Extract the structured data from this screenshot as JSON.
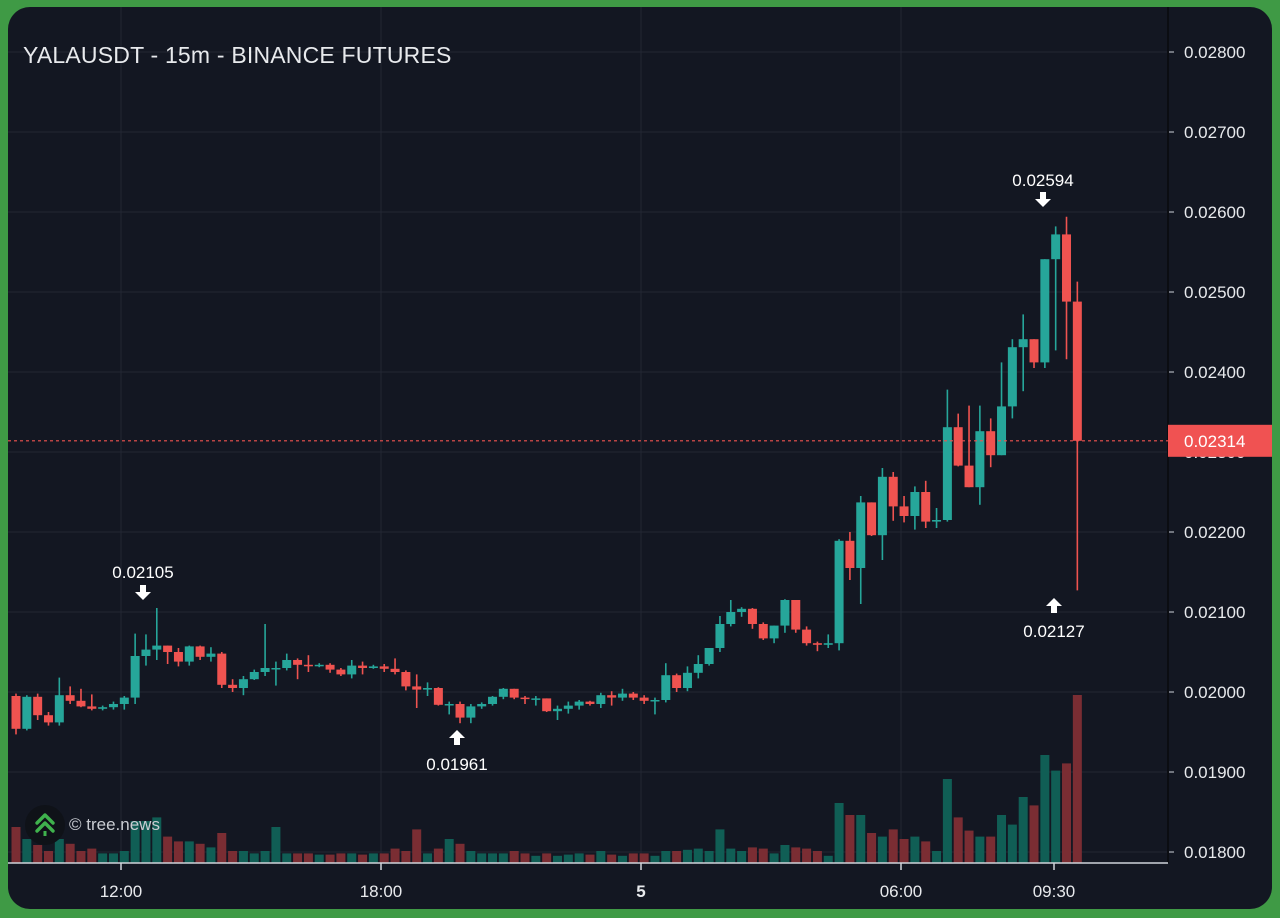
{
  "header": {
    "title": "YALAUSDT - 15m - BINANCE FUTURES"
  },
  "watermark": {
    "text": "© tree.news",
    "icon": "tree-logo-icon"
  },
  "colors": {
    "frame_border": "#3f9a45",
    "background": "#131722",
    "grid": "#232733",
    "up": "#26a69a",
    "down": "#ef5350",
    "up_volume": "#105e55",
    "down_volume": "#7a2d33",
    "last_price_label": "#f05252",
    "text": "#e8eaed"
  },
  "price_axis": {
    "ticks": [
      "0.02800",
      "0.02700",
      "0.02600",
      "0.02500",
      "0.02400",
      "0.02300",
      "0.02200",
      "0.02100",
      "0.02000",
      "0.01900",
      "0.01800"
    ],
    "last_price_label": "0.02314"
  },
  "time_axis": {
    "ticks": [
      {
        "label": "12:00",
        "bold": false
      },
      {
        "label": "18:00",
        "bold": false
      },
      {
        "label": "5",
        "bold": true
      },
      {
        "label": "06:00",
        "bold": false
      },
      {
        "label": "09:30",
        "bold": false
      }
    ]
  },
  "annotations": {
    "high_left": {
      "label": "0.02105",
      "direction": "down"
    },
    "low_mid": {
      "label": "0.01961",
      "direction": "up"
    },
    "high_peak": {
      "label": "0.02594",
      "direction": "down"
    },
    "low_last": {
      "label": "0.02127",
      "direction": "up"
    }
  },
  "chart_data": {
    "type": "candlestick",
    "title": "YALAUSDT - 15m - BINANCE FUTURES",
    "xlabel": "",
    "ylabel": "",
    "ylim": [
      0.0178,
      0.0281
    ],
    "grid": true,
    "legend": "none",
    "x_ticks": [
      "12:00",
      "18:00",
      "5",
      "06:00",
      "09:30"
    ],
    "y_ticks": [
      0.028,
      0.027,
      0.026,
      0.025,
      0.024,
      0.023,
      0.022,
      0.021,
      0.02,
      0.019,
      0.018
    ],
    "last_price": 0.02314,
    "annotated_high_left": 0.02105,
    "annotated_low": 0.01961,
    "annotated_high": 0.02594,
    "annotated_low_last": 0.02127,
    "candles_ohlcv": [
      [
        0.01995,
        0.01998,
        0.01947,
        0.01954,
        3
      ],
      [
        0.01954,
        0.01996,
        0.01952,
        0.01994,
        2
      ],
      [
        0.01994,
        0.01998,
        0.01965,
        0.01971,
        1.5
      ],
      [
        0.01971,
        0.01975,
        0.01958,
        0.01962,
        1
      ],
      [
        0.01962,
        0.02018,
        0.01958,
        0.01996,
        2
      ],
      [
        0.01996,
        0.02007,
        0.01985,
        0.01989,
        1.6
      ],
      [
        0.01989,
        0.02004,
        0.01981,
        0.01982,
        1
      ],
      [
        0.01982,
        0.01997,
        0.01977,
        0.01979,
        1.2
      ],
      [
        0.01979,
        0.01983,
        0.01977,
        0.01981,
        0.8
      ],
      [
        0.01981,
        0.01988,
        0.01978,
        0.01985,
        0.8
      ],
      [
        0.01985,
        0.01995,
        0.01978,
        0.01993,
        1
      ],
      [
        0.01993,
        0.02073,
        0.01985,
        0.02045,
        3.5
      ],
      [
        0.02045,
        0.02072,
        0.02033,
        0.02053,
        3.5
      ],
      [
        0.02053,
        0.02105,
        0.0204,
        0.02058,
        3.8
      ],
      [
        0.02058,
        0.02058,
        0.02035,
        0.0205,
        2.2
      ],
      [
        0.0205,
        0.02055,
        0.02032,
        0.02038,
        1.8
      ],
      [
        0.02038,
        0.02058,
        0.02033,
        0.02057,
        1.8
      ],
      [
        0.02057,
        0.02058,
        0.0204,
        0.02044,
        1.6
      ],
      [
        0.02044,
        0.02056,
        0.02038,
        0.02048,
        1.3
      ],
      [
        0.02048,
        0.0205,
        0.02005,
        0.02009,
        2.5
      ],
      [
        0.02009,
        0.02016,
        0.02,
        0.02005,
        1
      ],
      [
        0.02005,
        0.0202,
        0.01996,
        0.02016,
        1
      ],
      [
        0.02016,
        0.02028,
        0.02015,
        0.02025,
        0.8
      ],
      [
        0.02025,
        0.02085,
        0.0202,
        0.0203,
        1
      ],
      [
        0.0203,
        0.02038,
        0.02008,
        0.0203,
        3
      ],
      [
        0.0203,
        0.02048,
        0.02027,
        0.0204,
        0.8
      ],
      [
        0.0204,
        0.02042,
        0.02016,
        0.02034,
        0.8
      ],
      [
        0.02034,
        0.02046,
        0.02025,
        0.02033,
        0.8
      ],
      [
        0.02033,
        0.02036,
        0.02031,
        0.02034,
        0.7
      ],
      [
        0.02034,
        0.02036,
        0.02024,
        0.02028,
        0.7
      ],
      [
        0.02028,
        0.0203,
        0.0202,
        0.02022,
        0.8
      ],
      [
        0.02022,
        0.0204,
        0.02017,
        0.02033,
        0.8
      ],
      [
        0.02033,
        0.02038,
        0.02022,
        0.0203,
        0.7
      ],
      [
        0.0203,
        0.02034,
        0.02029,
        0.02032,
        0.8
      ],
      [
        0.02032,
        0.02035,
        0.02025,
        0.02029,
        0.8
      ],
      [
        0.02029,
        0.02042,
        0.02022,
        0.02025,
        1.2
      ],
      [
        0.02025,
        0.02027,
        0.02002,
        0.02007,
        1
      ],
      [
        0.02007,
        0.02022,
        0.0198,
        0.02003,
        2.8
      ],
      [
        0.02003,
        0.02012,
        0.01995,
        0.02005,
        0.8
      ],
      [
        0.02005,
        0.02006,
        0.01983,
        0.01984,
        1.2
      ],
      [
        0.01984,
        0.01988,
        0.01972,
        0.01985,
        2
      ],
      [
        0.01985,
        0.01988,
        0.01961,
        0.01968,
        1.6
      ],
      [
        0.01968,
        0.01985,
        0.01961,
        0.01982,
        1
      ],
      [
        0.01982,
        0.01987,
        0.01979,
        0.01985,
        0.8
      ],
      [
        0.01985,
        0.01995,
        0.01983,
        0.01994,
        0.8
      ],
      [
        0.01994,
        0.02005,
        0.01991,
        0.02004,
        0.8
      ],
      [
        0.02004,
        0.02004,
        0.01991,
        0.01993,
        1
      ],
      [
        0.01993,
        0.01995,
        0.01985,
        0.01992,
        0.8
      ],
      [
        0.01992,
        0.01995,
        0.01983,
        0.01992,
        0.6
      ],
      [
        0.01992,
        0.01992,
        0.01975,
        0.01976,
        0.8
      ],
      [
        0.01976,
        0.01983,
        0.01965,
        0.01979,
        0.6
      ],
      [
        0.01979,
        0.01988,
        0.01973,
        0.01983,
        0.7
      ],
      [
        0.01983,
        0.0199,
        0.01978,
        0.01988,
        0.8
      ],
      [
        0.01988,
        0.01989,
        0.01983,
        0.01985,
        0.7
      ],
      [
        0.01985,
        0.01999,
        0.0198,
        0.01996,
        1
      ],
      [
        0.01996,
        0.02001,
        0.01983,
        0.01993,
        0.7
      ],
      [
        0.01993,
        0.02004,
        0.01989,
        0.01998,
        0.6
      ],
      [
        0.01998,
        0.02,
        0.0199,
        0.01993,
        0.8
      ],
      [
        0.01993,
        0.01996,
        0.01985,
        0.01989,
        0.8
      ],
      [
        0.01989,
        0.01993,
        0.01972,
        0.0199,
        0.6
      ],
      [
        0.0199,
        0.02036,
        0.01987,
        0.02021,
        1
      ],
      [
        0.02021,
        0.02023,
        0.02,
        0.02005,
        1
      ],
      [
        0.02005,
        0.02032,
        0.02001,
        0.02024,
        1.1
      ],
      [
        0.02024,
        0.02046,
        0.02017,
        0.02035,
        1.2
      ],
      [
        0.02035,
        0.02054,
        0.02033,
        0.02055,
        1
      ],
      [
        0.02055,
        0.02095,
        0.0205,
        0.02085,
        2.8
      ],
      [
        0.02085,
        0.02115,
        0.02082,
        0.021,
        1.2
      ],
      [
        0.021,
        0.02106,
        0.02094,
        0.02104,
        1
      ],
      [
        0.02104,
        0.02105,
        0.02079,
        0.02085,
        1.3
      ],
      [
        0.02085,
        0.02087,
        0.02065,
        0.02067,
        1.2
      ],
      [
        0.02067,
        0.02083,
        0.02061,
        0.02083,
        0.8
      ],
      [
        0.02083,
        0.02116,
        0.02074,
        0.02115,
        1.5
      ],
      [
        0.02115,
        0.02115,
        0.02074,
        0.02078,
        1.3
      ],
      [
        0.02078,
        0.02082,
        0.02058,
        0.02061,
        1.2
      ],
      [
        0.02061,
        0.02063,
        0.02051,
        0.02059,
        1
      ],
      [
        0.02059,
        0.02072,
        0.02055,
        0.02061,
        0.6
      ],
      [
        0.02061,
        0.02191,
        0.02052,
        0.02189,
        5
      ],
      [
        0.02189,
        0.022,
        0.0214,
        0.02155,
        4
      ],
      [
        0.02155,
        0.02245,
        0.0211,
        0.02237,
        4
      ],
      [
        0.02237,
        0.02237,
        0.02195,
        0.02196,
        2.5
      ],
      [
        0.02196,
        0.0228,
        0.02165,
        0.02269,
        2.2
      ],
      [
        0.02269,
        0.02275,
        0.02214,
        0.02232,
        2.8
      ],
      [
        0.02232,
        0.02245,
        0.02212,
        0.0222,
        2
      ],
      [
        0.0222,
        0.02257,
        0.02203,
        0.0225,
        2.2
      ],
      [
        0.0225,
        0.02264,
        0.02205,
        0.02213,
        1.8
      ],
      [
        0.02213,
        0.0223,
        0.02205,
        0.02215,
        1
      ],
      [
        0.02215,
        0.02378,
        0.02213,
        0.02331,
        7
      ],
      [
        0.02331,
        0.02348,
        0.02282,
        0.02283,
        3.8
      ],
      [
        0.02283,
        0.02358,
        0.0226,
        0.02256,
        2.7
      ],
      [
        0.02256,
        0.02358,
        0.02234,
        0.02326,
        2.2
      ],
      [
        0.02326,
        0.02342,
        0.02281,
        0.02296,
        2.2
      ],
      [
        0.02296,
        0.02412,
        0.0231,
        0.02357,
        4
      ],
      [
        0.02357,
        0.02441,
        0.02342,
        0.02431,
        3.2
      ],
      [
        0.02431,
        0.02472,
        0.02376,
        0.02441,
        5.5
      ],
      [
        0.02441,
        0.02413,
        0.02405,
        0.02412,
        4.8
      ],
      [
        0.02412,
        0.02478,
        0.02405,
        0.02541,
        9
      ],
      [
        0.02541,
        0.02582,
        0.02427,
        0.02572,
        7.7
      ],
      [
        0.02572,
        0.02594,
        0.02416,
        0.02488,
        8.3
      ],
      [
        0.02488,
        0.02513,
        0.02127,
        0.02314,
        14
      ]
    ]
  }
}
